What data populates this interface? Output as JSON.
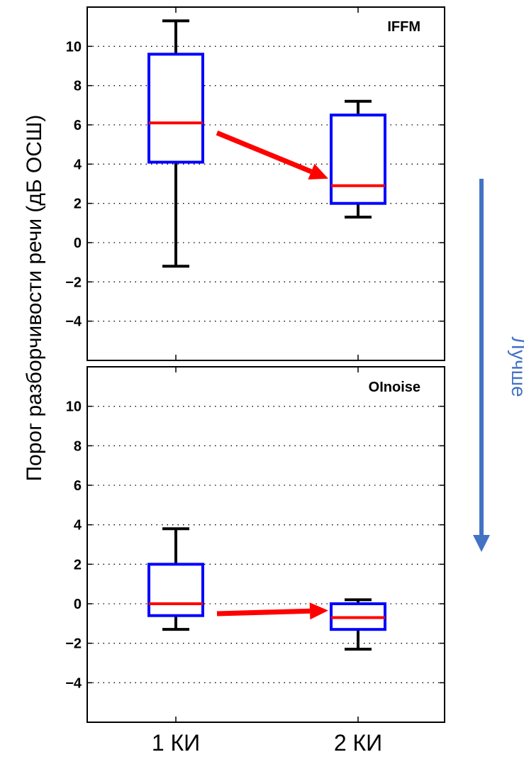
{
  "chart_data": {
    "type": "box",
    "ylabel": "Порог разборчивости речи (дБ ОСШ)",
    "categories": [
      "1 КИ",
      "2 КИ"
    ],
    "ylim": [
      -6,
      12
    ],
    "yticks": [
      10,
      8,
      6,
      4,
      2,
      0,
      -2,
      -4
    ],
    "grid": true,
    "annotation": "Лучше",
    "colors": {
      "box": "#0000ff",
      "median": "#ff0000",
      "whisker": "#000000",
      "arrow": "#ff0000",
      "annotation": "#4472c4"
    },
    "panels": [
      {
        "title": "IFFM",
        "boxes": [
          {
            "category": "1 КИ",
            "whisker_low": -1.2,
            "q1": 4.1,
            "median": 6.1,
            "q3": 9.6,
            "whisker_high": 11.3
          },
          {
            "category": "2 КИ",
            "whisker_low": 1.3,
            "q1": 2.0,
            "median": 2.9,
            "q3": 6.5,
            "whisker_high": 7.2
          }
        ]
      },
      {
        "title": "OInoise",
        "boxes": [
          {
            "category": "1 КИ",
            "whisker_low": -1.3,
            "q1": -0.6,
            "median": 0.0,
            "q3": 2.0,
            "whisker_high": 3.8
          },
          {
            "category": "2 КИ",
            "whisker_low": -2.3,
            "q1": -1.3,
            "median": -0.7,
            "q3": 0.0,
            "whisker_high": 0.2
          }
        ]
      }
    ]
  }
}
